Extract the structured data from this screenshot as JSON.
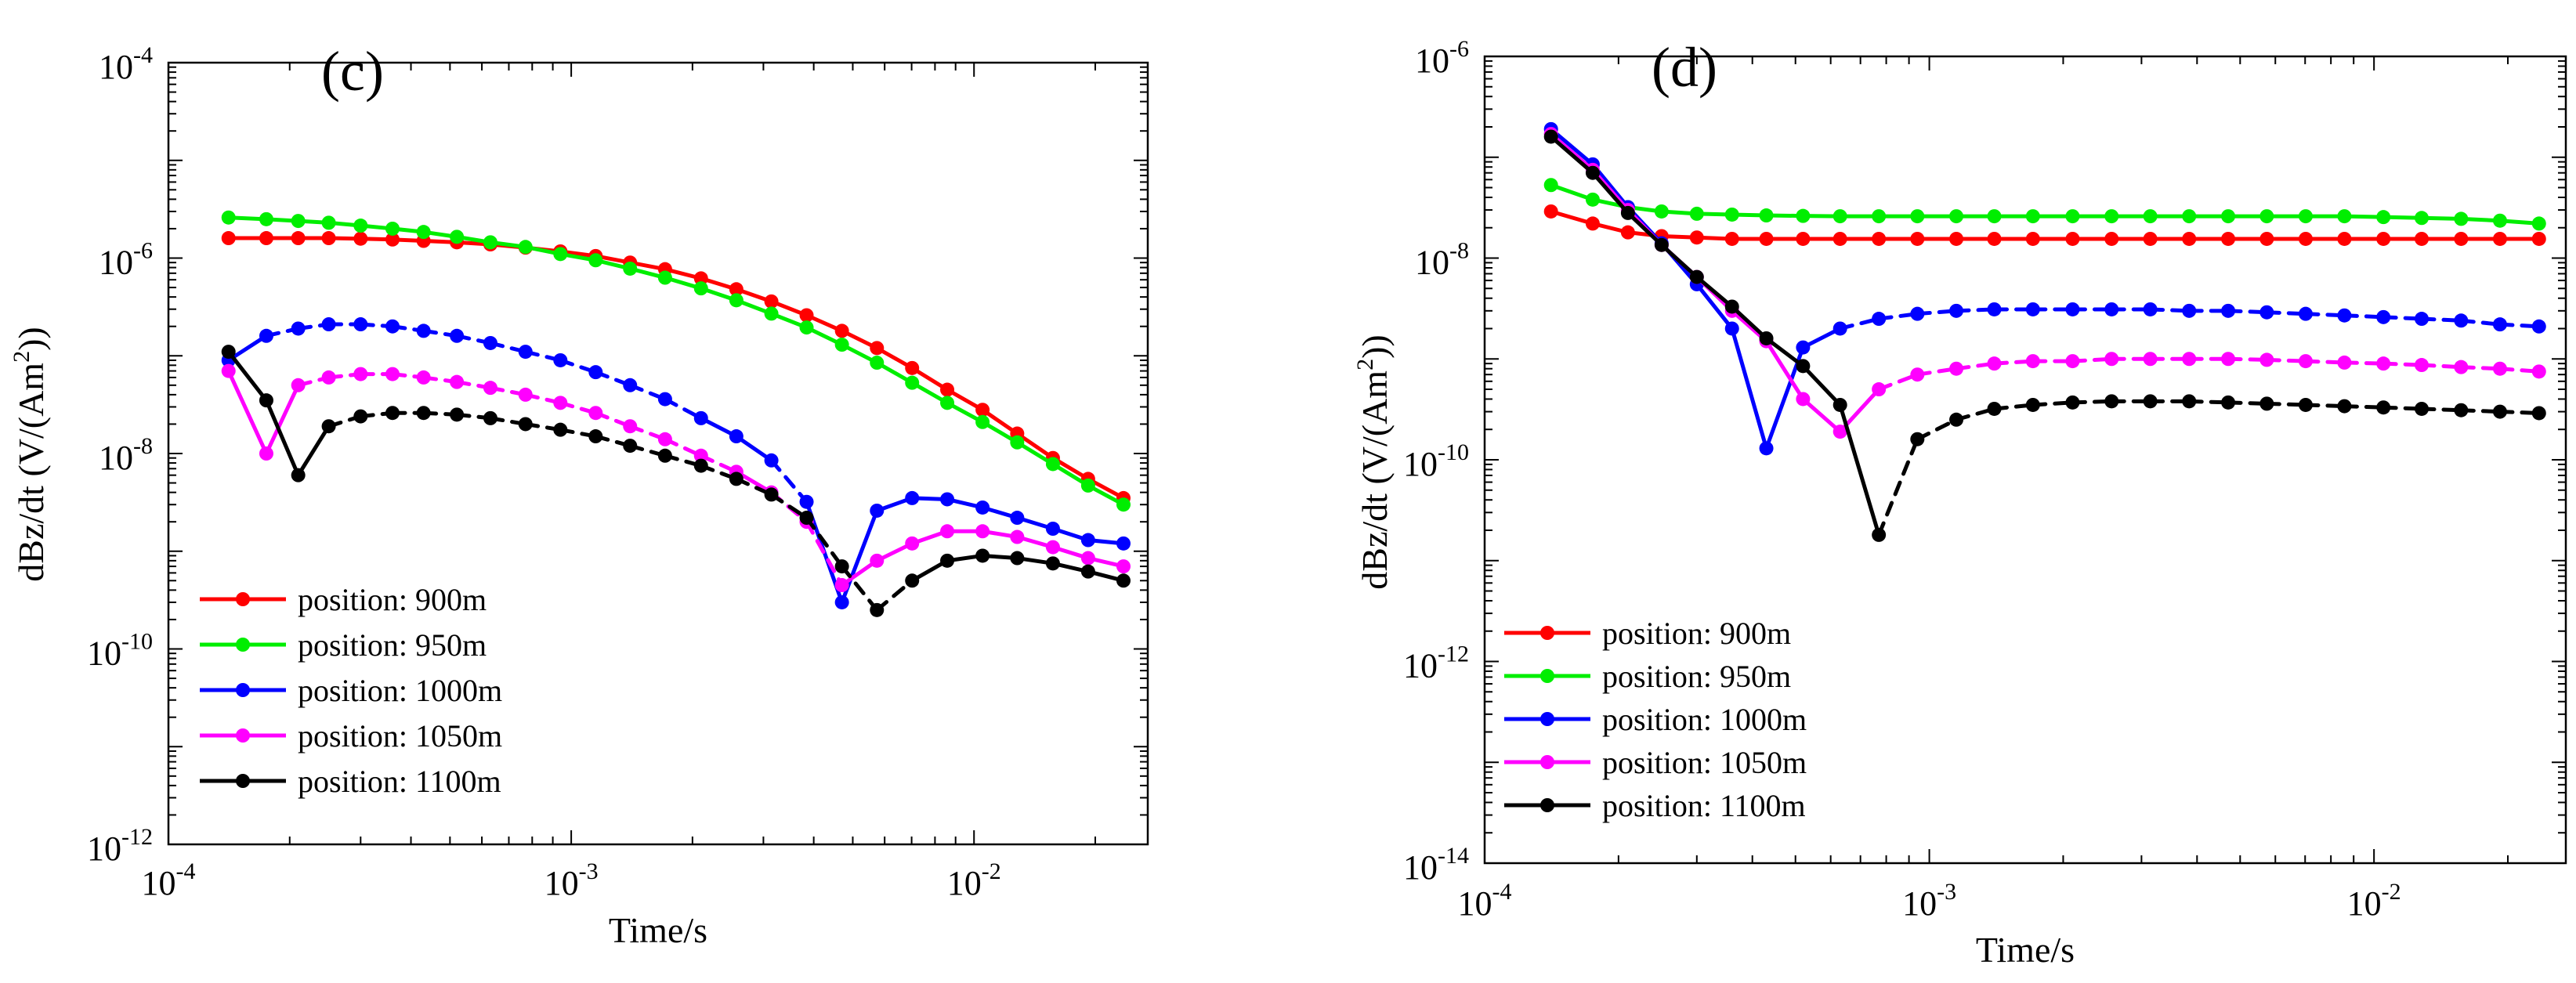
{
  "figure": "TEM dBz/dt decay curves at five survey positions",
  "chart_data": [
    {
      "type": "line",
      "panel_label": "(c)",
      "xlabel": "Time/s",
      "ylabel": "dBz/dt (V/(Am",
      "ylabel_sup": "2",
      "ylabel_end": "))",
      "xscale": "log",
      "yscale": "log",
      "xlim": [
        0.0001,
        0.027
      ],
      "ylim": [
        1e-12,
        0.0001
      ],
      "x_ticks": [
        {
          "base": "10",
          "exp": "-4",
          "value": 0.0001
        },
        {
          "base": "10",
          "exp": "-3",
          "value": 0.001
        },
        {
          "base": "10",
          "exp": "-2",
          "value": 0.01
        }
      ],
      "y_ticks": [
        {
          "base": "10",
          "exp": "-4",
          "value": 0.0001
        },
        {
          "base": "10",
          "exp": "-6",
          "value": 1e-06
        },
        {
          "base": "10",
          "exp": "-8",
          "value": 1e-08
        },
        {
          "base": "10",
          "exp": "-10",
          "value": 1e-10
        },
        {
          "base": "10",
          "exp": "-12",
          "value": 1e-12
        }
      ],
      "legend_position": "lower-left",
      "series": [
        {
          "name": "position: 900m",
          "color": "#ff0000",
          "dashed_ranges": [],
          "x": [
            0.000141,
            0.000175,
            0.00021,
            0.00025,
            0.0003,
            0.00036,
            0.00043,
            0.00052,
            0.00063,
            0.00077,
            0.00094,
            0.00115,
            0.0014,
            0.00171,
            0.0021,
            0.00257,
            0.00314,
            0.00384,
            0.0047,
            0.00574,
            0.00702,
            0.00858,
            0.0105,
            0.0128,
            0.0157,
            0.0192,
            0.0235
          ],
          "y": [
            1.6e-06,
            1.6e-06,
            1.6e-06,
            1.6e-06,
            1.58e-06,
            1.55e-06,
            1.5e-06,
            1.45e-06,
            1.38e-06,
            1.28e-06,
            1.17e-06,
            1.05e-06,
            9e-07,
            7.7e-07,
            6.2e-07,
            4.8e-07,
            3.6e-07,
            2.6e-07,
            1.8e-07,
            1.2e-07,
            7.5e-08,
            4.5e-08,
            2.8e-08,
            1.6e-08,
            9e-09,
            5.5e-09,
            3.5e-09
          ]
        },
        {
          "name": "position: 950m",
          "color": "#00ee00",
          "dashed_ranges": [],
          "x": [
            0.000141,
            0.000175,
            0.00021,
            0.00025,
            0.0003,
            0.00036,
            0.00043,
            0.00052,
            0.00063,
            0.00077,
            0.00094,
            0.00115,
            0.0014,
            0.00171,
            0.0021,
            0.00257,
            0.00314,
            0.00384,
            0.0047,
            0.00574,
            0.00702,
            0.00858,
            0.0105,
            0.0128,
            0.0157,
            0.0192,
            0.0235
          ],
          "y": [
            2.6e-06,
            2.5e-06,
            2.4e-06,
            2.3e-06,
            2.15e-06,
            2e-06,
            1.85e-06,
            1.65e-06,
            1.45e-06,
            1.3e-06,
            1.1e-06,
            9.5e-07,
            7.8e-07,
            6.3e-07,
            4.9e-07,
            3.7e-07,
            2.7e-07,
            1.95e-07,
            1.3e-07,
            8.5e-08,
            5.3e-08,
            3.3e-08,
            2.1e-08,
            1.3e-08,
            7.8e-09,
            4.7e-09,
            3e-09
          ]
        },
        {
          "name": "position: 1000m",
          "color": "#0000ff",
          "dashed_ranges": [
            [
              1,
              14
            ],
            [
              16,
              17
            ]
          ],
          "x": [
            0.000141,
            0.000175,
            0.00021,
            0.00025,
            0.0003,
            0.00036,
            0.00043,
            0.00052,
            0.00063,
            0.00077,
            0.00094,
            0.00115,
            0.0014,
            0.00171,
            0.0021,
            0.00257,
            0.00314,
            0.00384,
            0.0047,
            0.00574,
            0.00702,
            0.00858,
            0.0105,
            0.0128,
            0.0157,
            0.0192,
            0.0235
          ],
          "y": [
            9e-08,
            1.6e-07,
            1.9e-07,
            2.1e-07,
            2.1e-07,
            2e-07,
            1.8e-07,
            1.6e-07,
            1.35e-07,
            1.1e-07,
            9e-08,
            6.8e-08,
            5e-08,
            3.6e-08,
            2.3e-08,
            1.5e-08,
            8.5e-09,
            3.2e-09,
            3e-10,
            2.6e-09,
            3.5e-09,
            3.4e-09,
            2.8e-09,
            2.2e-09,
            1.7e-09,
            1.3e-09,
            1.2e-09
          ]
        },
        {
          "name": "position: 1050m",
          "color": "#ff00ff",
          "dashed_ranges": [
            [
              2,
              15
            ],
            [
              16,
              18
            ]
          ],
          "x": [
            0.000141,
            0.000175,
            0.00021,
            0.00025,
            0.0003,
            0.00036,
            0.00043,
            0.00052,
            0.00063,
            0.00077,
            0.00094,
            0.00115,
            0.0014,
            0.00171,
            0.0021,
            0.00257,
            0.00314,
            0.00384,
            0.0047,
            0.00574,
            0.00702,
            0.00858,
            0.0105,
            0.0128,
            0.0157,
            0.0192,
            0.0235
          ],
          "y": [
            7e-08,
            1e-08,
            5e-08,
            6e-08,
            6.5e-08,
            6.5e-08,
            6e-08,
            5.4e-08,
            4.7e-08,
            4e-08,
            3.3e-08,
            2.6e-08,
            1.9e-08,
            1.4e-08,
            9.5e-09,
            6.5e-09,
            4e-09,
            2e-09,
            4.5e-10,
            8e-10,
            1.2e-09,
            1.6e-09,
            1.6e-09,
            1.4e-09,
            1.1e-09,
            8.5e-10,
            7e-10
          ]
        },
        {
          "name": "position: 1100m",
          "color": "#000000",
          "dashed_ranges": [
            [
              3,
              20
            ]
          ],
          "x": [
            0.000141,
            0.000175,
            0.00021,
            0.00025,
            0.0003,
            0.00036,
            0.00043,
            0.00052,
            0.00063,
            0.00077,
            0.00094,
            0.00115,
            0.0014,
            0.00171,
            0.0021,
            0.00257,
            0.00314,
            0.00384,
            0.0047,
            0.00574,
            0.00702,
            0.00858,
            0.0105,
            0.0128,
            0.0157,
            0.0192,
            0.0235
          ],
          "y": [
            1.1e-07,
            3.5e-08,
            6e-09,
            1.9e-08,
            2.4e-08,
            2.6e-08,
            2.6e-08,
            2.5e-08,
            2.3e-08,
            2e-08,
            1.75e-08,
            1.5e-08,
            1.2e-08,
            9.5e-09,
            7.5e-09,
            5.5e-09,
            3.8e-09,
            2.2e-09,
            7e-10,
            2.5e-10,
            5e-10,
            8e-10,
            9e-10,
            8.5e-10,
            7.5e-10,
            6.2e-10,
            5e-10
          ]
        }
      ]
    },
    {
      "type": "line",
      "panel_label": "(d)",
      "xlabel": "Time/s",
      "ylabel": "dBz/dt (V/(Am",
      "ylabel_sup": "2",
      "ylabel_end": "))",
      "xscale": "log",
      "yscale": "log",
      "xlim": [
        0.0001,
        0.027
      ],
      "ylim": [
        1e-14,
        1e-06
      ],
      "x_ticks": [
        {
          "base": "10",
          "exp": "-4",
          "value": 0.0001
        },
        {
          "base": "10",
          "exp": "-3",
          "value": 0.001
        },
        {
          "base": "10",
          "exp": "-2",
          "value": 0.01
        }
      ],
      "y_ticks": [
        {
          "base": "10",
          "exp": "-6",
          "value": 1e-06
        },
        {
          "base": "10",
          "exp": "-8",
          "value": 1e-08
        },
        {
          "base": "10",
          "exp": "-10",
          "value": 1e-10
        },
        {
          "base": "10",
          "exp": "-12",
          "value": 1e-12
        },
        {
          "base": "10",
          "exp": "-14",
          "value": 1e-14
        }
      ],
      "legend_position": "lower-left",
      "series": [
        {
          "name": "position: 900m",
          "color": "#ff0000",
          "dashed_ranges": [],
          "x": [
            0.000141,
            0.000175,
            0.00021,
            0.00025,
            0.0003,
            0.00036,
            0.00043,
            0.00052,
            0.00063,
            0.00077,
            0.00094,
            0.00115,
            0.0014,
            0.00171,
            0.0021,
            0.00257,
            0.00314,
            0.00384,
            0.0047,
            0.00574,
            0.00702,
            0.00858,
            0.0105,
            0.0128,
            0.0157,
            0.0192,
            0.0235
          ],
          "y": [
            2.9e-08,
            2.2e-08,
            1.8e-08,
            1.65e-08,
            1.6e-08,
            1.55e-08,
            1.55e-08,
            1.55e-08,
            1.55e-08,
            1.55e-08,
            1.55e-08,
            1.55e-08,
            1.55e-08,
            1.55e-08,
            1.55e-08,
            1.55e-08,
            1.55e-08,
            1.55e-08,
            1.55e-08,
            1.55e-08,
            1.55e-08,
            1.55e-08,
            1.55e-08,
            1.55e-08,
            1.55e-08,
            1.55e-08,
            1.55e-08
          ]
        },
        {
          "name": "position: 950m",
          "color": "#00ee00",
          "dashed_ranges": [],
          "x": [
            0.000141,
            0.000175,
            0.00021,
            0.00025,
            0.0003,
            0.00036,
            0.00043,
            0.00052,
            0.00063,
            0.00077,
            0.00094,
            0.00115,
            0.0014,
            0.00171,
            0.0021,
            0.00257,
            0.00314,
            0.00384,
            0.0047,
            0.00574,
            0.00702,
            0.00858,
            0.0105,
            0.0128,
            0.0157,
            0.0192,
            0.0235
          ],
          "y": [
            5.3e-08,
            3.8e-08,
            3.2e-08,
            2.9e-08,
            2.75e-08,
            2.7e-08,
            2.65e-08,
            2.62e-08,
            2.6e-08,
            2.6e-08,
            2.6e-08,
            2.6e-08,
            2.6e-08,
            2.6e-08,
            2.6e-08,
            2.6e-08,
            2.6e-08,
            2.6e-08,
            2.6e-08,
            2.6e-08,
            2.6e-08,
            2.6e-08,
            2.55e-08,
            2.5e-08,
            2.45e-08,
            2.35e-08,
            2.2e-08
          ]
        },
        {
          "name": "position: 1000m",
          "color": "#0000ff",
          "dashed_ranges": [
            [
              8,
              26
            ]
          ],
          "x": [
            0.000141,
            0.000175,
            0.00021,
            0.00025,
            0.0003,
            0.00036,
            0.00043,
            0.00052,
            0.00063,
            0.00077,
            0.00094,
            0.00115,
            0.0014,
            0.00171,
            0.0021,
            0.00257,
            0.00314,
            0.00384,
            0.0047,
            0.00574,
            0.00702,
            0.00858,
            0.0105,
            0.0128,
            0.0157,
            0.0192,
            0.0235
          ],
          "y": [
            1.9e-07,
            8.5e-08,
            3.2e-08,
            1.4e-08,
            5.5e-09,
            2e-09,
            1.3e-10,
            1.3e-09,
            2e-09,
            2.5e-09,
            2.8e-09,
            3e-09,
            3.1e-09,
            3.1e-09,
            3.1e-09,
            3.1e-09,
            3.1e-09,
            3e-09,
            3e-09,
            2.9e-09,
            2.8e-09,
            2.7e-09,
            2.6e-09,
            2.5e-09,
            2.4e-09,
            2.2e-09,
            2.1e-09
          ]
        },
        {
          "name": "position: 1050m",
          "color": "#ff00ff",
          "dashed_ranges": [
            [
              9,
              26
            ]
          ],
          "x": [
            0.000141,
            0.000175,
            0.00021,
            0.00025,
            0.0003,
            0.00036,
            0.00043,
            0.00052,
            0.00063,
            0.00077,
            0.00094,
            0.00115,
            0.0014,
            0.00171,
            0.0021,
            0.00257,
            0.00314,
            0.00384,
            0.0047,
            0.00574,
            0.00702,
            0.00858,
            0.0105,
            0.0128,
            0.0157,
            0.0192,
            0.0235
          ],
          "y": [
            1.7e-07,
            7.5e-08,
            3e-08,
            1.35e-08,
            6.5e-09,
            3e-09,
            1.5e-09,
            4e-10,
            1.9e-10,
            5e-10,
            7e-10,
            8e-10,
            9e-10,
            9.5e-10,
            9.5e-10,
            1e-09,
            1e-09,
            1e-09,
            1e-09,
            9.8e-10,
            9.5e-10,
            9.2e-10,
            9e-10,
            8.7e-10,
            8.3e-10,
            8e-10,
            7.5e-10
          ]
        },
        {
          "name": "position: 1100m",
          "color": "#000000",
          "dashed_ranges": [
            [
              9,
              26
            ]
          ],
          "x": [
            0.000141,
            0.000175,
            0.00021,
            0.00025,
            0.0003,
            0.00036,
            0.00043,
            0.00052,
            0.00063,
            0.00077,
            0.00094,
            0.00115,
            0.0014,
            0.00171,
            0.0021,
            0.00257,
            0.00314,
            0.00384,
            0.0047,
            0.00574,
            0.00702,
            0.00858,
            0.0105,
            0.0128,
            0.0157,
            0.0192,
            0.0235
          ],
          "y": [
            1.6e-07,
            7e-08,
            2.8e-08,
            1.35e-08,
            6.5e-09,
            3.3e-09,
            1.6e-09,
            8.5e-10,
            3.5e-10,
            1.8e-11,
            1.6e-10,
            2.5e-10,
            3.2e-10,
            3.5e-10,
            3.7e-10,
            3.8e-10,
            3.8e-10,
            3.8e-10,
            3.7e-10,
            3.6e-10,
            3.5e-10,
            3.4e-10,
            3.3e-10,
            3.2e-10,
            3.1e-10,
            3e-10,
            2.9e-10
          ]
        }
      ]
    }
  ]
}
